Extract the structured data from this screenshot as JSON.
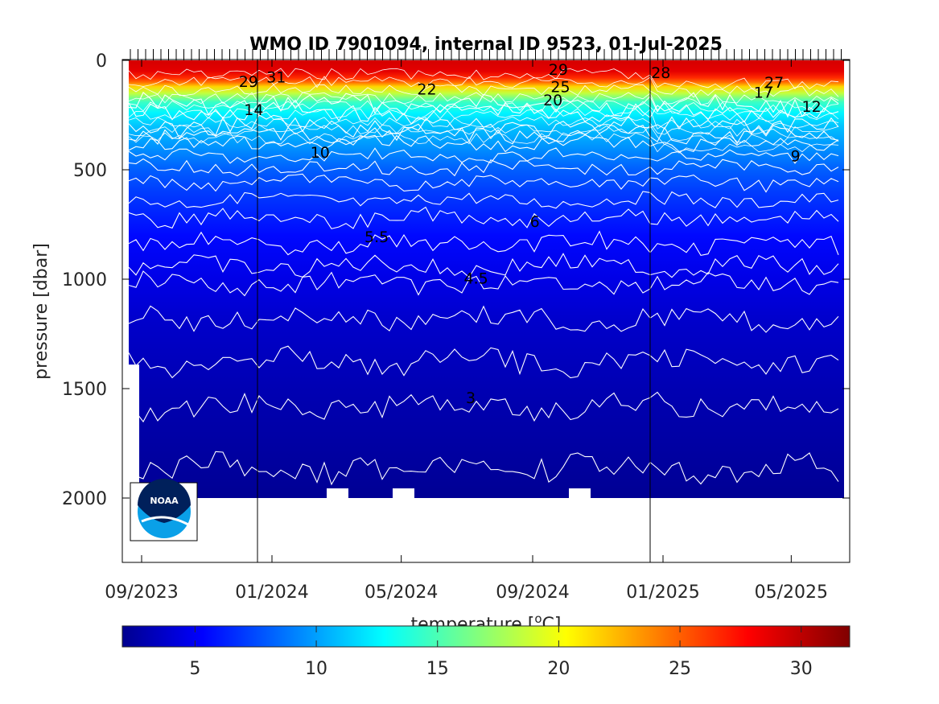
{
  "chart_data": {
    "type": "heatmap",
    "title": "WMO ID 7901094, internal ID 9523, 01-Jul-2025",
    "xlabel": "",
    "ylabel": "pressure [dbar]",
    "colorbar_label": "temperature [",
    "colorbar_label_sup": "o",
    "colorbar_label_tail": "C]",
    "colormap": "jet",
    "x_ticks": [
      "09/2023",
      "01/2024",
      "05/2024",
      "09/2024",
      "01/2025",
      "05/2025"
    ],
    "y_ticks": [
      "0",
      "500",
      "1000",
      "1500",
      "2000"
    ],
    "ylim": [
      0,
      2300
    ],
    "y_reversed": true,
    "colorbar_ticks": [
      "5",
      "10",
      "15",
      "20",
      "25",
      "30"
    ],
    "colorbar_range": [
      2,
      32
    ],
    "year_boundaries": [
      "01/2024",
      "01/2025"
    ],
    "layers": [
      {
        "p": 0,
        "t": 29.5
      },
      {
        "p": 50,
        "t": 29
      },
      {
        "p": 80,
        "t": 27
      },
      {
        "p": 100,
        "t": 25
      },
      {
        "p": 120,
        "t": 22
      },
      {
        "p": 150,
        "t": 19
      },
      {
        "p": 190,
        "t": 15
      },
      {
        "p": 240,
        "t": 13
      },
      {
        "p": 300,
        "t": 11.5
      },
      {
        "p": 400,
        "t": 10
      },
      {
        "p": 500,
        "t": 8.5
      },
      {
        "p": 600,
        "t": 7.5
      },
      {
        "p": 800,
        "t": 6
      },
      {
        "p": 1000,
        "t": 5
      },
      {
        "p": 1200,
        "t": 4.2
      },
      {
        "p": 1500,
        "t": 3.5
      },
      {
        "p": 2000,
        "t": 2.6
      }
    ],
    "contours": [
      {
        "p": 200,
        "amp": 14
      },
      {
        "p": 240,
        "amp": 14
      },
      {
        "p": 300,
        "amp": 14
      },
      {
        "p": 340,
        "amp": 12
      },
      {
        "p": 380,
        "amp": 10
      },
      {
        "p": 440,
        "amp": 10
      },
      {
        "p": 490,
        "amp": 10
      },
      {
        "p": 560,
        "amp": 10
      },
      {
        "p": 640,
        "amp": 10
      },
      {
        "p": 720,
        "amp": 12
      },
      {
        "p": 840,
        "amp": 14
      },
      {
        "p": 940,
        "amp": 14
      },
      {
        "p": 1020,
        "amp": 14
      },
      {
        "p": 1180,
        "amp": 16
      },
      {
        "p": 1380,
        "amp": 18
      },
      {
        "p": 1580,
        "amp": 18
      },
      {
        "p": 1870,
        "amp": 20
      }
    ],
    "contour_labels": [
      {
        "text": "29",
        "x": "2023-12-10",
        "p": 95
      },
      {
        "text": "31",
        "x": "2024-01-05",
        "p": 75
      },
      {
        "text": "14",
        "x": "2023-12-15",
        "p": 225
      },
      {
        "text": "10",
        "x": "2024-02-15",
        "p": 420
      },
      {
        "text": "22",
        "x": "2024-05-25",
        "p": 130
      },
      {
        "text": "29",
        "x": "2024-09-25",
        "p": 40
      },
      {
        "text": "25",
        "x": "2024-09-27",
        "p": 120
      },
      {
        "text": "20",
        "x": "2024-09-20",
        "p": 180
      },
      {
        "text": "28",
        "x": "2024-12-30",
        "p": 55
      },
      {
        "text": "27",
        "x": "2025-04-15",
        "p": 100
      },
      {
        "text": "17",
        "x": "2025-04-05",
        "p": 145
      },
      {
        "text": "12",
        "x": "2025-05-20",
        "p": 210
      },
      {
        "text": "9",
        "x": "2025-05-05",
        "p": 435
      },
      {
        "text": "6",
        "x": "2024-09-03",
        "p": 735
      },
      {
        "text": "5.5",
        "x": "2024-04-08",
        "p": 805
      },
      {
        "text": "4.5",
        "x": "2024-07-10",
        "p": 995
      },
      {
        "text": "3",
        "x": "2024-07-05",
        "p": 1540
      }
    ]
  }
}
